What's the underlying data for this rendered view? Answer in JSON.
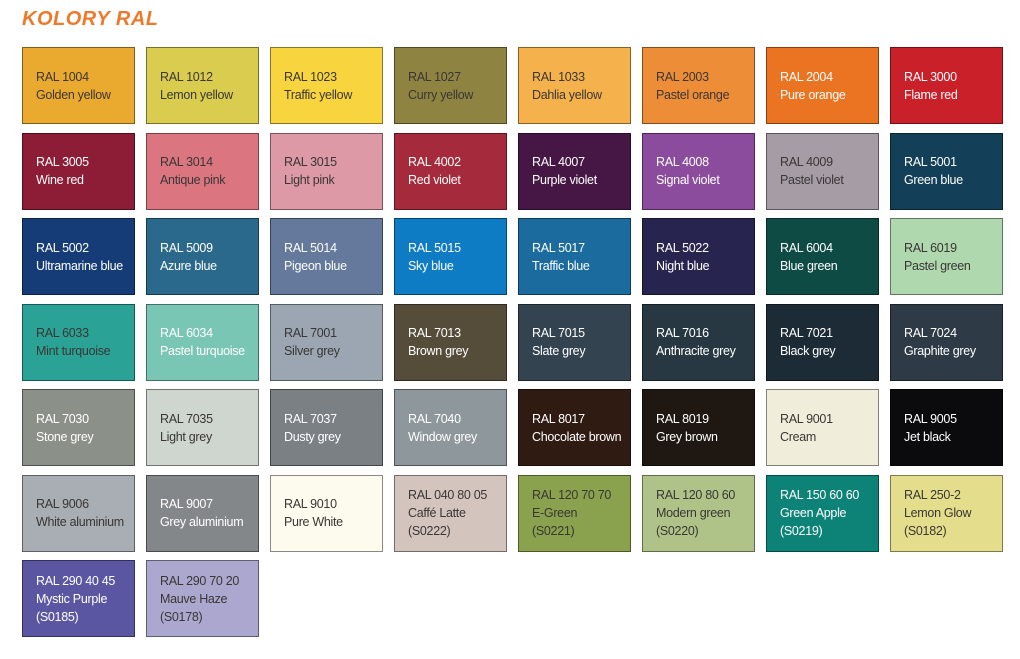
{
  "header": {
    "title": "KOLORY RAL",
    "title_color": "#ED7A2B"
  },
  "chart_data": {
    "type": "table",
    "title": "KOLORY RAL",
    "columns": [
      "code",
      "name",
      "scode",
      "hex",
      "text"
    ],
    "legend_position": "none",
    "grid": "8 columns x 7 rows of color swatches",
    "rows": [
      {
        "code": "RAL 1004",
        "name": "Golden yellow",
        "scode": "",
        "hex": "#EAAA30",
        "text": "dark"
      },
      {
        "code": "RAL 1012",
        "name": "Lemon yellow",
        "scode": "",
        "hex": "#D9CC4E",
        "text": "dark"
      },
      {
        "code": "RAL 1023",
        "name": "Traffic yellow",
        "scode": "",
        "hex": "#F8D43F",
        "text": "dark"
      },
      {
        "code": "RAL 1027",
        "name": "Curry yellow",
        "scode": "",
        "hex": "#8F8342",
        "text": "dark"
      },
      {
        "code": "RAL 1033",
        "name": "Dahlia yellow",
        "scode": "",
        "hex": "#F5B14C",
        "text": "dark"
      },
      {
        "code": "RAL 2003",
        "name": "Pastel orange",
        "scode": "",
        "hex": "#EE8D38",
        "text": "dark"
      },
      {
        "code": "RAL 2004",
        "name": "Pure orange",
        "scode": "",
        "hex": "#EB7423",
        "text": "light"
      },
      {
        "code": "RAL 3000",
        "name": "Flame red",
        "scode": "",
        "hex": "#C9202A",
        "text": "light"
      },
      {
        "code": "RAL 3005",
        "name": "Wine red",
        "scode": "",
        "hex": "#8D1D37",
        "text": "light"
      },
      {
        "code": "RAL 3014",
        "name": "Antique pink",
        "scode": "",
        "hex": "#DB7681",
        "text": "dark"
      },
      {
        "code": "RAL 3015",
        "name": "Light pink",
        "scode": "",
        "hex": "#DD9AA6",
        "text": "dark"
      },
      {
        "code": "RAL 4002",
        "name": "Red violet",
        "scode": "",
        "hex": "#A42A3C",
        "text": "light"
      },
      {
        "code": "RAL 4007",
        "name": "Purple violet",
        "scode": "",
        "hex": "#461745",
        "text": "light"
      },
      {
        "code": "RAL 4008",
        "name": "Signal violet",
        "scode": "",
        "hex": "#8C4C9E",
        "text": "light"
      },
      {
        "code": "RAL 4009",
        "name": "Pastel violet",
        "scode": "",
        "hex": "#A69CA5",
        "text": "dark"
      },
      {
        "code": "RAL 5001",
        "name": "Green blue",
        "scode": "",
        "hex": "#143F58",
        "text": "light"
      },
      {
        "code": "RAL 5002",
        "name": "Ultramarine blue",
        "scode": "",
        "hex": "#163C78",
        "text": "light"
      },
      {
        "code": "RAL 5009",
        "name": "Azure blue",
        "scode": "",
        "hex": "#2B698C",
        "text": "light"
      },
      {
        "code": "RAL 5014",
        "name": "Pigeon blue",
        "scode": "",
        "hex": "#64799C",
        "text": "light"
      },
      {
        "code": "RAL 5015",
        "name": "Sky blue",
        "scode": "",
        "hex": "#0E7CC4",
        "text": "light"
      },
      {
        "code": "RAL 5017",
        "name": "Traffic blue",
        "scode": "",
        "hex": "#1C6B9E",
        "text": "light"
      },
      {
        "code": "RAL 5022",
        "name": "Night blue",
        "scode": "",
        "hex": "#282450",
        "text": "light"
      },
      {
        "code": "RAL 6004",
        "name": "Blue green",
        "scode": "",
        "hex": "#0F4B45",
        "text": "light"
      },
      {
        "code": "RAL 6019",
        "name": "Pastel green",
        "scode": "",
        "hex": "#AFD8AF",
        "text": "dark"
      },
      {
        "code": "RAL 6033",
        "name": "Mint turquoise",
        "scode": "",
        "hex": "#2AA396",
        "text": "dark"
      },
      {
        "code": "RAL 6034",
        "name": "Pastel turquoise",
        "scode": "",
        "hex": "#7AC6B5",
        "text": "light"
      },
      {
        "code": "RAL 7001",
        "name": "Silver grey",
        "scode": "",
        "hex": "#9BA6B2",
        "text": "dark"
      },
      {
        "code": "RAL 7013",
        "name": "Brown grey",
        "scode": "",
        "hex": "#554D39",
        "text": "light"
      },
      {
        "code": "RAL 7015",
        "name": "Slate grey",
        "scode": "",
        "hex": "#344350",
        "text": "light"
      },
      {
        "code": "RAL 7016",
        "name": "Anthracite grey",
        "scode": "",
        "hex": "#273843",
        "text": "light"
      },
      {
        "code": "RAL 7021",
        "name": "Black grey",
        "scode": "",
        "hex": "#1D2B36",
        "text": "light"
      },
      {
        "code": "RAL 7024",
        "name": "Graphite grey",
        "scode": "",
        "hex": "#2E3B47",
        "text": "light"
      },
      {
        "code": "RAL 7030",
        "name": "Stone grey",
        "scode": "",
        "hex": "#8B9189",
        "text": "light"
      },
      {
        "code": "RAL 7035",
        "name": "Light grey",
        "scode": "",
        "hex": "#CED6CF",
        "text": "dark"
      },
      {
        "code": "RAL 7037",
        "name": "Dusty grey",
        "scode": "",
        "hex": "#7B8085",
        "text": "light"
      },
      {
        "code": "RAL 7040",
        "name": "Window grey",
        "scode": "",
        "hex": "#8E979C",
        "text": "light"
      },
      {
        "code": "RAL 8017",
        "name": "Chocolate brown",
        "scode": "",
        "hex": "#2F1B12",
        "text": "light"
      },
      {
        "code": "RAL 8019",
        "name": "Grey brown",
        "scode": "",
        "hex": "#1F1712",
        "text": "light"
      },
      {
        "code": "RAL 9001",
        "name": "Cream",
        "scode": "",
        "hex": "#F0EEDA",
        "text": "dark"
      },
      {
        "code": "RAL 9005",
        "name": "Jet black",
        "scode": "",
        "hex": "#0B0B0D",
        "text": "light"
      },
      {
        "code": "RAL 9006",
        "name": "White aluminium",
        "scode": "",
        "hex": "#A9ADB4",
        "text": "dark"
      },
      {
        "code": "RAL 9007",
        "name": "Grey aluminium",
        "scode": "",
        "hex": "#848789",
        "text": "light"
      },
      {
        "code": "RAL 9010",
        "name": "Pure White",
        "scode": "",
        "hex": "#FCFBEE",
        "text": "dark"
      },
      {
        "code": "RAL 040 80 05",
        "name": "Caffé Latte",
        "scode": "(S0222)",
        "hex": "#D4C4BE",
        "text": "dark"
      },
      {
        "code": "RAL 120 70 70",
        "name": "E-Green",
        "scode": "(S0221)",
        "hex": "#8AA14D",
        "text": "dark"
      },
      {
        "code": "RAL 120 80 60",
        "name": "Modern green",
        "scode": "(S0220)",
        "hex": "#AFC389",
        "text": "dark"
      },
      {
        "code": "RAL 150 60 60",
        "name": "Green Apple",
        "scode": "(S0219)",
        "hex": "#0D8378",
        "text": "light"
      },
      {
        "code": "RAL 250-2",
        "name": "Lemon Glow",
        "scode": "(S0182)",
        "hex": "#E4DD8B",
        "text": "dark"
      },
      {
        "code": "RAL 290 40 45",
        "name": "Mystic Purple",
        "scode": "(S0185)",
        "hex": "#5B56A2",
        "text": "light"
      },
      {
        "code": "RAL 290 70 20",
        "name": "Mauve Haze",
        "scode": "(S0178)",
        "hex": "#ACA7CF",
        "text": "dark"
      }
    ]
  }
}
